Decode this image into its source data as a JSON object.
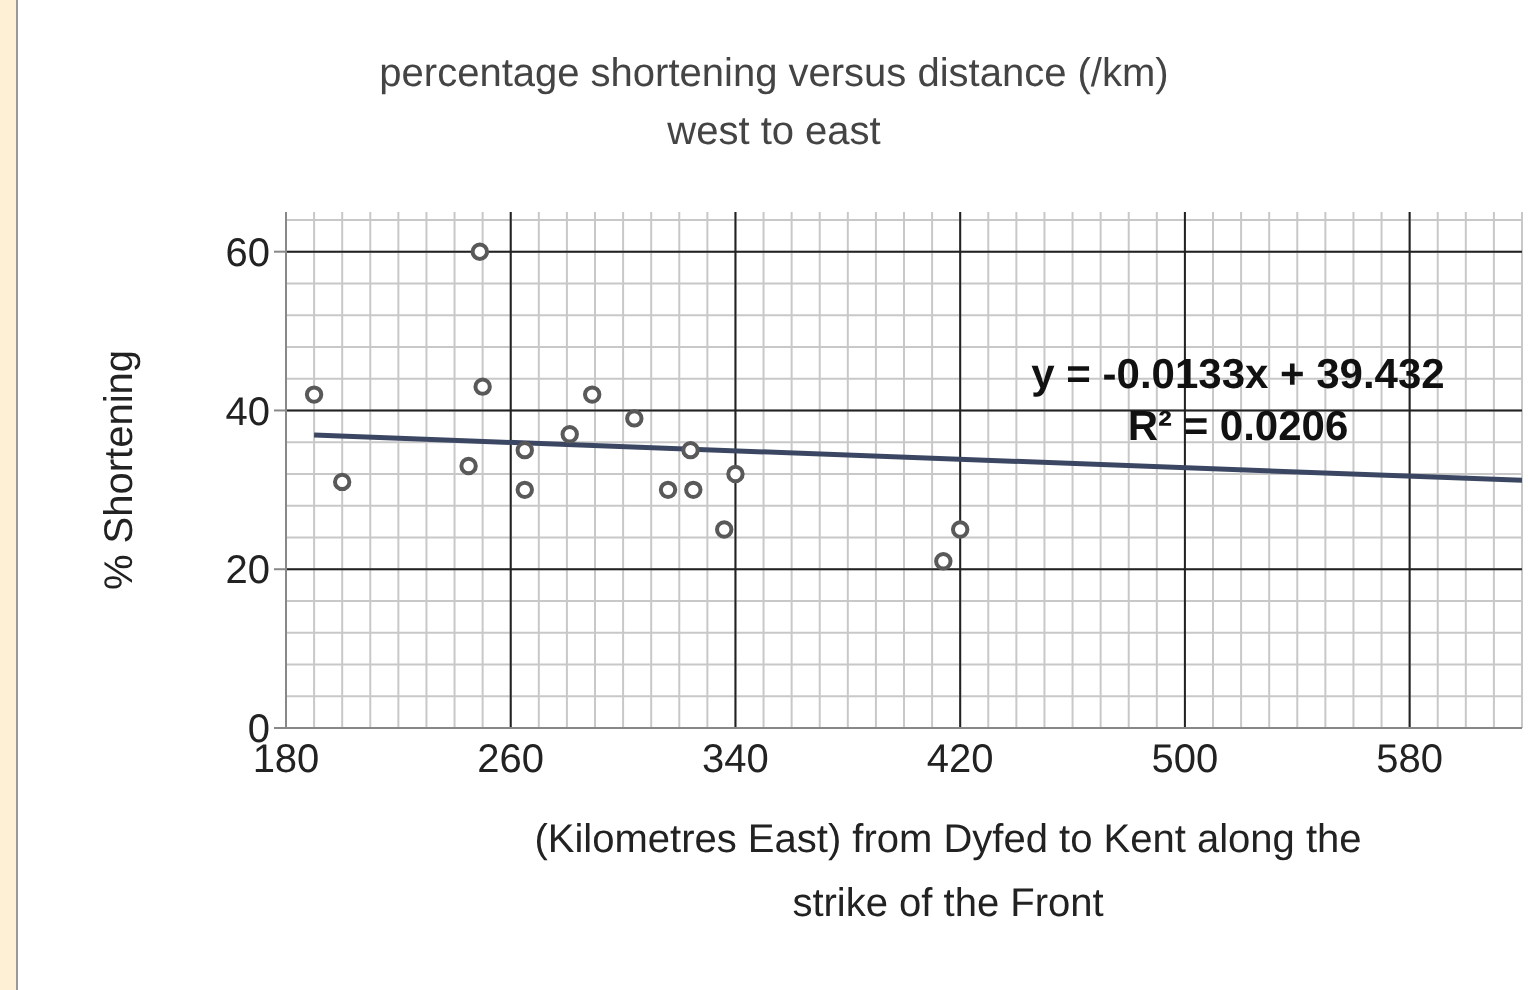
{
  "chart_data": {
    "type": "scatter",
    "title": "percentage shortening versus distance (/km)",
    "subtitle": "west to east",
    "xlabel": "(Kilometres East) from Dyfed to Kent along the strike of the Front",
    "ylabel": "% Shortening",
    "x": [
      190,
      200,
      249,
      250,
      245,
      265,
      265,
      281,
      289,
      304,
      316,
      324,
      325,
      336,
      340,
      420,
      414
    ],
    "series": [
      {
        "color": "#595959",
        "marker": "circle",
        "values": [
          42,
          31,
          60,
          43,
          33,
          35,
          30,
          37,
          42,
          39,
          30,
          35,
          30,
          25,
          32,
          25,
          21
        ]
      },
      {
        "type": "line",
        "x": [
          190,
          620
        ],
        "color": "#3b4762",
        "values": [
          36.9,
          31.2
        ]
      }
    ],
    "xlim": [
      180,
      620
    ],
    "xticks": [
      180,
      260,
      340,
      420,
      500,
      580
    ],
    "ylim": [
      0,
      65
    ],
    "yticks": [
      0,
      20,
      40,
      60
    ],
    "grid": true,
    "annotations": [
      "y = -0.0133x + 39.432",
      "R² = 0.0206"
    ]
  }
}
